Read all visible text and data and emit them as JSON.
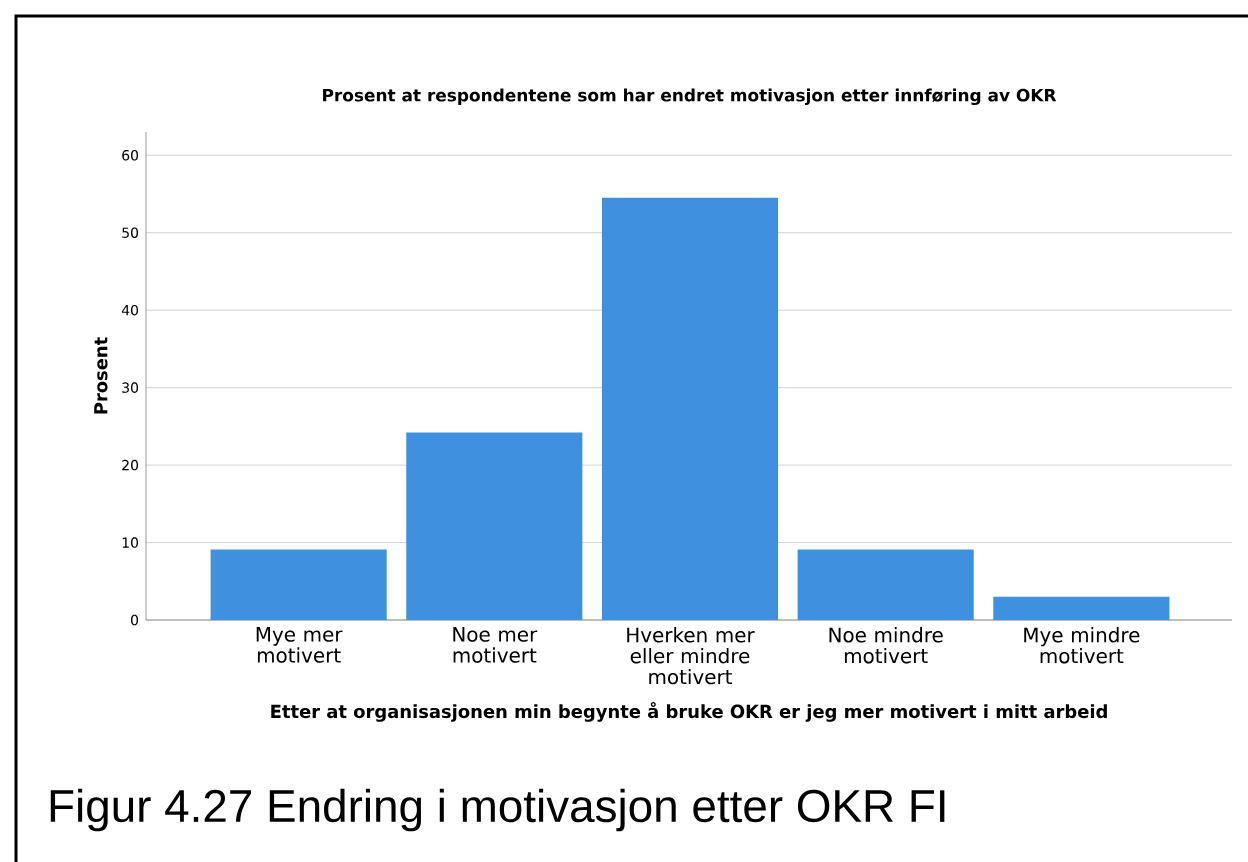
{
  "chart_data": {
    "type": "bar",
    "title": "Prosent at respondentene som har endret motivasjon etter innføring av OKR",
    "xlabel": "Etter at organisasjonen min begynte å bruke OKR er jeg mer motivert i mitt arbeid",
    "ylabel": "Prosent",
    "categories": [
      "Mye mer motivert",
      "Noe mer motivert",
      "Hverken mer eller mindre motivert",
      "Noe mindre motivert",
      "Mye mindre motivert"
    ],
    "values": [
      9.1,
      24.2,
      54.5,
      9.1,
      3.0
    ],
    "color": "#3f91e0",
    "ylim": [
      0,
      63
    ],
    "yticks": [
      0,
      10,
      20,
      30,
      40,
      50,
      60
    ],
    "grid": "y",
    "annotations": [
      "Figur 4.27 Endring i motivasjon etter OKR FI"
    ]
  }
}
